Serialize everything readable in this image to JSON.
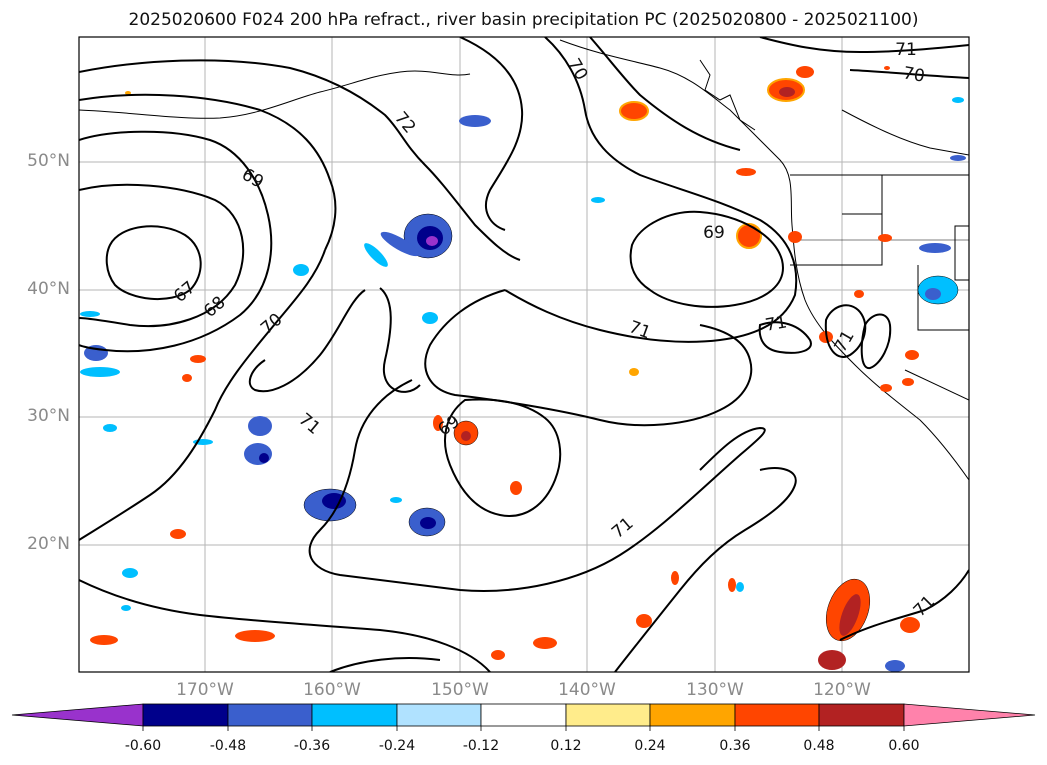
{
  "title": "2025020600 F024 200 hPa refract., river basin precipitation PC (2025020800 - 2025021100)",
  "map": {
    "lat_labels": [
      "50°N",
      "40°N",
      "30°N",
      "20°N"
    ],
    "lon_labels": [
      "170°W",
      "160°W",
      "150°W",
      "140°W",
      "130°W",
      "120°W"
    ],
    "contour_labels": [
      "72",
      "70",
      "71",
      "70",
      "69",
      "67",
      "68",
      "70",
      "71",
      "69",
      "71",
      "69",
      "71",
      "71",
      "71",
      "71"
    ]
  },
  "colorbar": {
    "ticks": [
      "-0.60",
      "-0.48",
      "-0.36",
      "-0.24",
      "-0.12",
      "0.12",
      "0.24",
      "0.36",
      "0.48",
      "0.60"
    ],
    "colors": [
      "#9932cc",
      "#00008b",
      "#3a5fcd",
      "#00bfff",
      "#b0e2ff",
      "#ffffff",
      "#ffec8b",
      "#ffa500",
      "#ff4500",
      "#b22222",
      "#ff82ab"
    ]
  }
}
